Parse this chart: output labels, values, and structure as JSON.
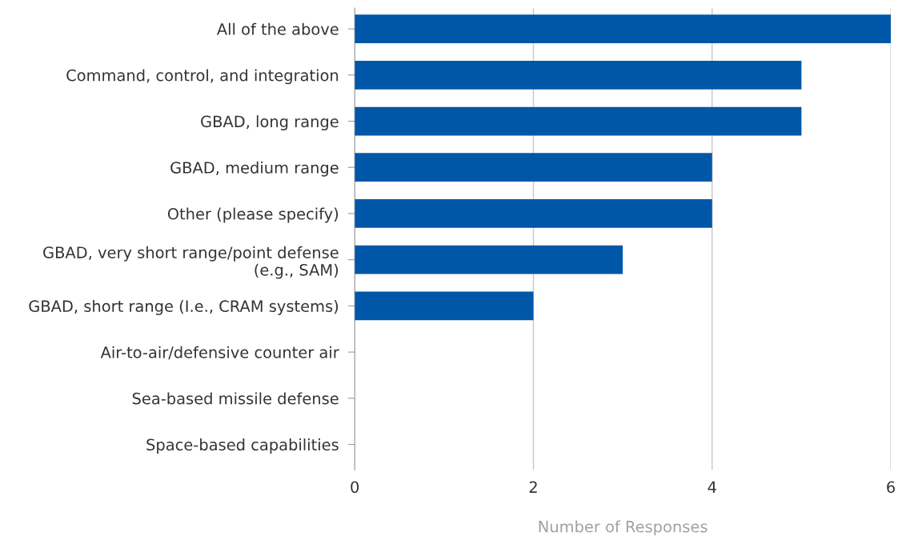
{
  "chart_data": {
    "type": "bar",
    "orientation": "horizontal",
    "xlabel": "Number of Responses",
    "categories": [
      "All of the above",
      "Command, control, and integration",
      "GBAD, long range",
      "GBAD, medium range",
      "Other (please specify)",
      "GBAD, very short range/point defense\n(e.g., SAM)",
      "GBAD, short range (I.e., CRAM systems)",
      "Air-to-air/defensive counter air",
      "Sea-based missile defense",
      "Space-based capabilities"
    ],
    "values": [
      6,
      5,
      5,
      4,
      4,
      3,
      2,
      0,
      0,
      0
    ],
    "color": "#0057a8",
    "xlim": [
      0,
      6
    ],
    "xticks": [
      0,
      2,
      4,
      6
    ],
    "grid": "x",
    "legend": false
  }
}
